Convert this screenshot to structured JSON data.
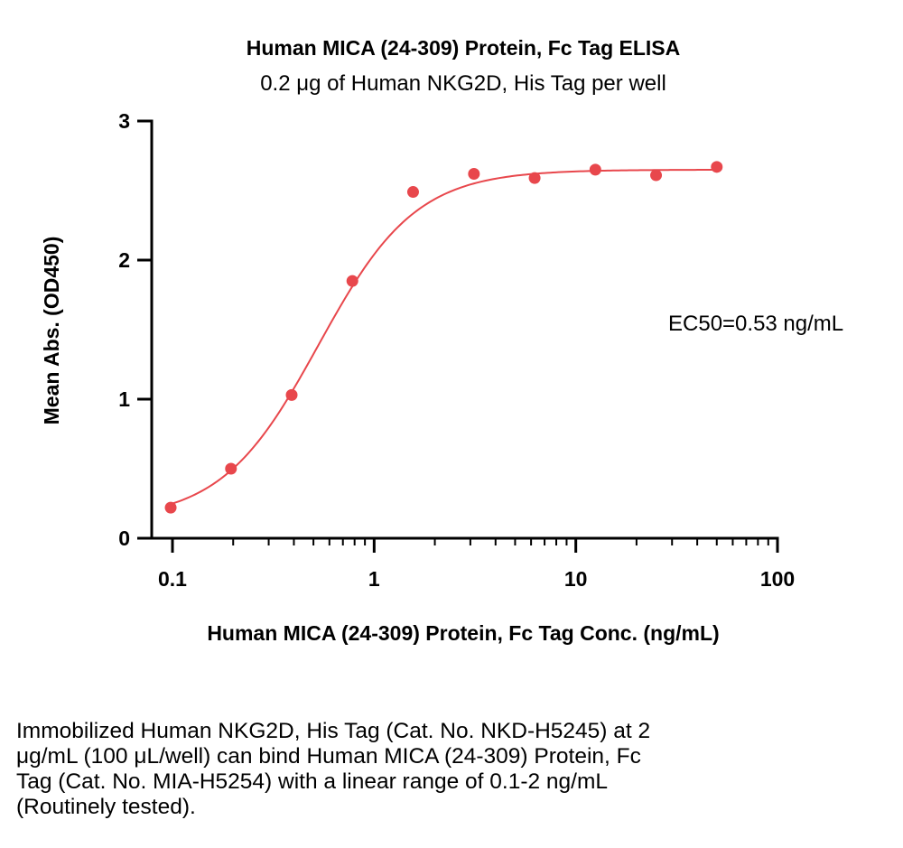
{
  "chart_data": {
    "type": "scatter",
    "title": "Human MICA (24-309) Protein, Fc Tag ELISA",
    "subtitle": "0.2 μg of Human NKG2D, His Tag per well",
    "xlabel": "Human MICA (24-309) Protein, Fc Tag Conc. (ng/mL)",
    "ylabel": "Mean Abs. (OD450)",
    "xscale": "log",
    "xlim": [
      0.1,
      100
    ],
    "ylim": [
      0,
      3
    ],
    "xticks": [
      0.1,
      1,
      10,
      100
    ],
    "xtick_labels": [
      "0.1",
      "1",
      "10",
      "100"
    ],
    "yticks": [
      0,
      1,
      2,
      3
    ],
    "ytick_labels": [
      "0",
      "1",
      "2",
      "3"
    ],
    "annotation": "EC50=0.53 ng/mL",
    "series": [
      {
        "name": "Human MICA (24-309) Protein, Fc Tag",
        "color": "#e8474c",
        "x": [
          0.098,
          0.195,
          0.39,
          0.78,
          1.56,
          3.125,
          6.25,
          12.5,
          25,
          50
        ],
        "y": [
          0.22,
          0.5,
          1.03,
          1.85,
          2.49,
          2.62,
          2.59,
          2.65,
          2.61,
          2.67
        ]
      }
    ],
    "fit": {
      "type": "4PL",
      "bottom": 0.13,
      "top": 2.65,
      "ec50": 0.53,
      "hill": 1.8,
      "color": "#e8474c"
    }
  },
  "description": {
    "lines": [
      "Immobilized Human NKG2D, His Tag (Cat. No. NKD-H5245) at 2",
      "μg/mL (100 μL/well) can bind Human MICA (24-309) Protein, Fc",
      "Tag (Cat. No. MIA-H5254) with a linear range of 0.1-2 ng/mL",
      "(Routinely tested)."
    ]
  }
}
